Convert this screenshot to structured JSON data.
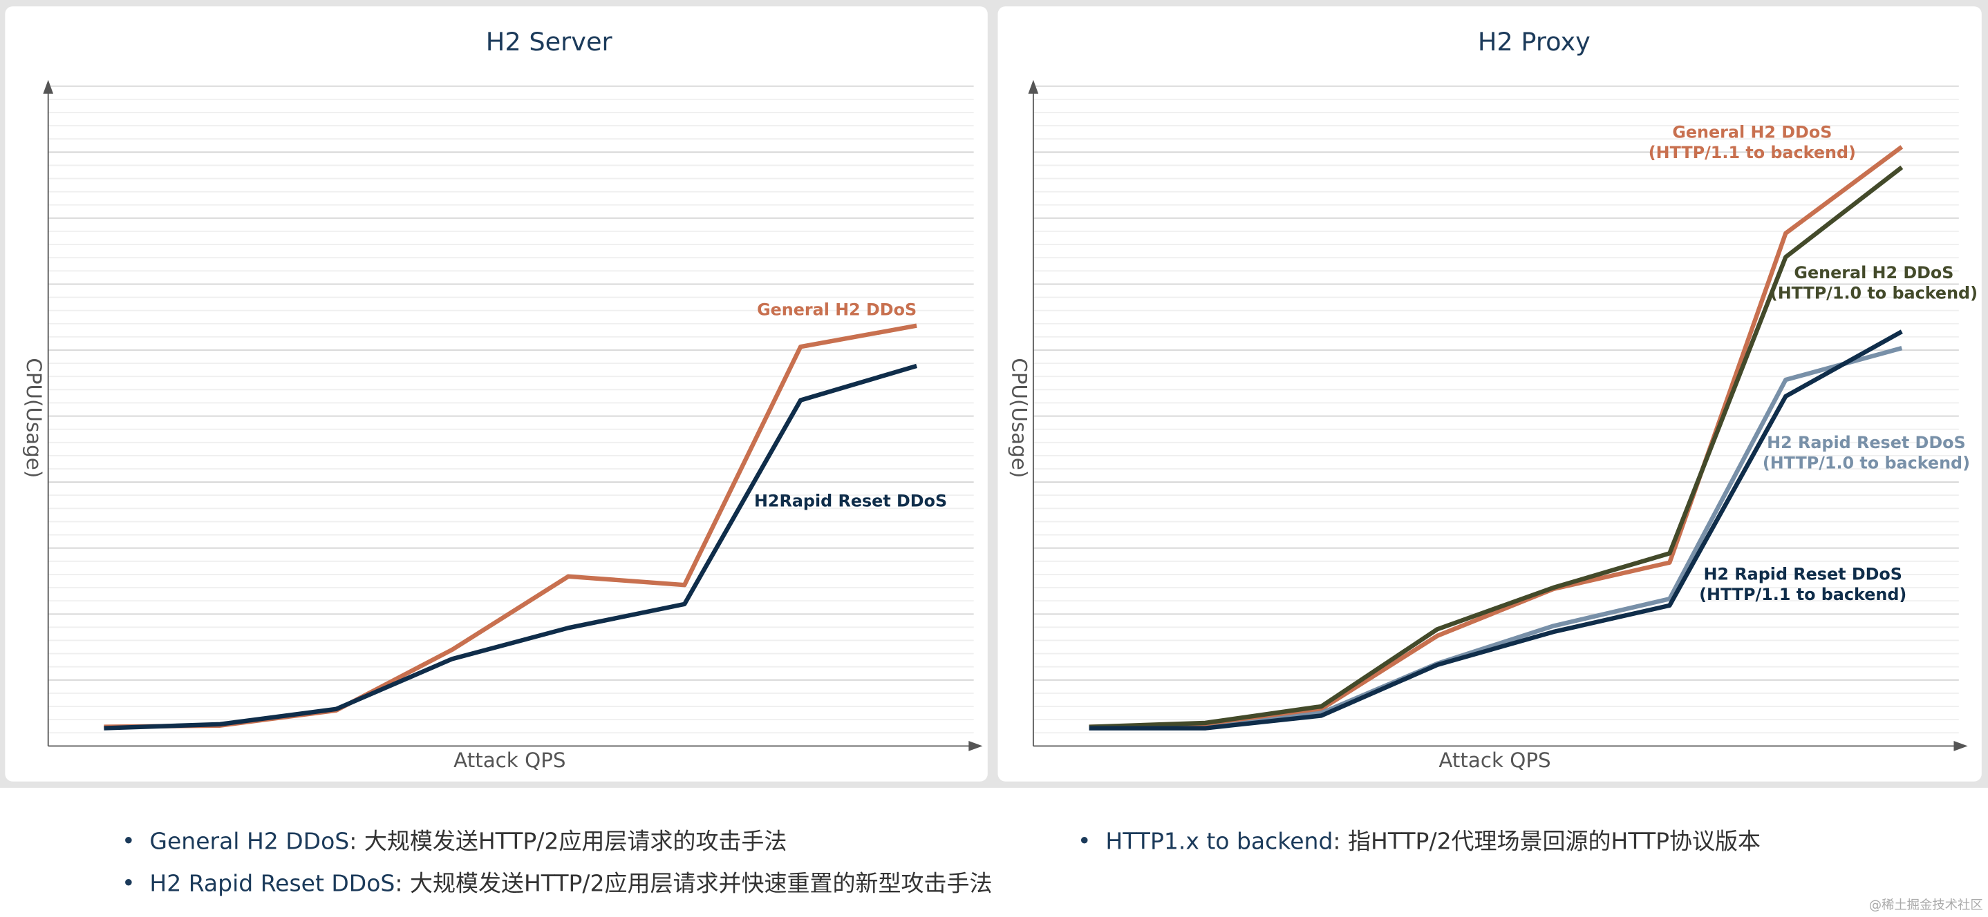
{
  "chart_data": [
    {
      "type": "line",
      "title": "H2 Server",
      "x_label": "Attack QPS",
      "y_label": "CPU(Usage)",
      "categories": [
        null,
        null,
        null,
        null,
        null,
        null,
        null,
        null
      ],
      "ylim": [
        0,
        100
      ],
      "grid": true,
      "series": [
        {
          "name": [
            "General H2 DDoS"
          ],
          "color": "#c8704f",
          "values": [
            2.9,
            3.1,
            5.4,
            14.6,
            25.7,
            24.4,
            60.5,
            63.7
          ]
        },
        {
          "name": [
            "H2Rapid Reset DDoS"
          ],
          "color": "#0f2d4a",
          "values": [
            2.7,
            3.3,
            5.6,
            13.2,
            17.9,
            21.5,
            52.4,
            57.6
          ]
        }
      ]
    },
    {
      "type": "line",
      "title": "H2 Proxy",
      "x_label": "Attack QPS",
      "y_label": "CPU(Usage)",
      "categories": [
        null,
        null,
        null,
        null,
        null,
        null,
        null,
        null
      ],
      "ylim": [
        0,
        100
      ],
      "grid": true,
      "series": [
        {
          "name": [
            "General H2 DDoS",
            "(HTTP/1.1 to backend)"
          ],
          "color": "#c8704f",
          "values": [
            2.9,
            3.1,
            5.6,
            16.7,
            23.8,
            27.8,
            77.7,
            90.8
          ]
        },
        {
          "name": [
            "General H2 DDoS",
            "(HTTP/1.0 to backend)"
          ],
          "color": "#434a2a",
          "values": [
            2.9,
            3.5,
            6.0,
            17.7,
            24.0,
            29.2,
            74.1,
            87.7
          ]
        },
        {
          "name": [
            "H2 Rapid Reset DDoS",
            "(HTTP/1.0 to backend)"
          ],
          "color": "#7890a8",
          "values": [
            2.7,
            2.7,
            5.0,
            12.5,
            18.2,
            22.3,
            55.5,
            60.3
          ]
        },
        {
          "name": [
            "H2 Rapid Reset DDoS",
            "(HTTP/1.1 to backend)"
          ],
          "color": "#0f2d4a",
          "values": [
            2.7,
            2.7,
            4.6,
            12.3,
            17.3,
            21.3,
            53.0,
            62.8
          ]
        }
      ]
    }
  ],
  "notes": [
    {
      "term": "General H2 DDoS",
      "text": ": 大规模发送HTTP/2应用层请求的攻击手法"
    },
    {
      "term": "H2 Rapid Reset DDoS",
      "text": ": 大规模发送HTTP/2应用层请求并快速重置的新型攻击手法"
    },
    {
      "term": "HTTP1.x to backend",
      "text": ": 指HTTP/2代理场景回源的HTTP协议版本"
    }
  ],
  "watermark": "@稀土掘金技术社区"
}
